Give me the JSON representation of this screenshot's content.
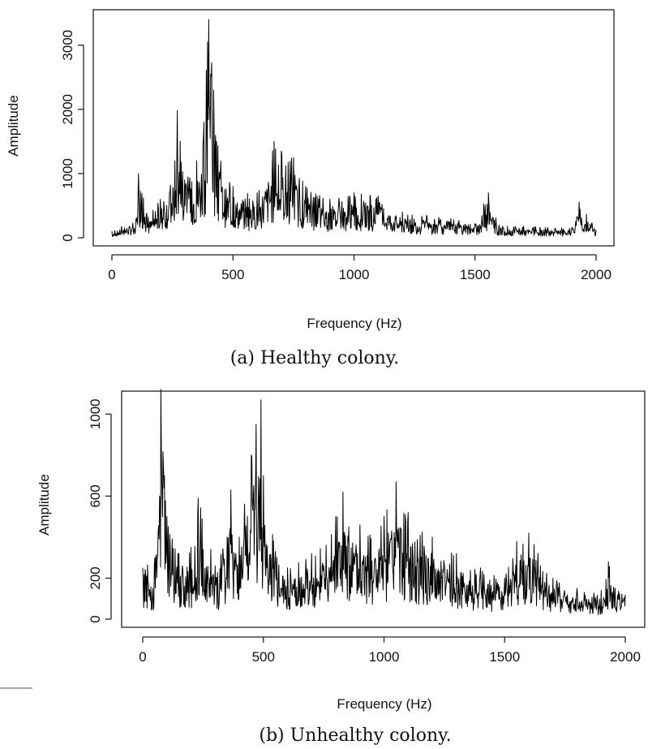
{
  "chart_data": [
    {
      "type": "line",
      "caption": "(a) Healthy colony.",
      "xlabel": "Frequency (Hz)",
      "ylabel": "Amplitude",
      "xlim": [
        0,
        2000
      ],
      "ylim": [
        0,
        3400
      ],
      "xticks": [
        "0",
        "500",
        "1000",
        "1500",
        "2000"
      ],
      "yticks": [
        "0",
        "1000",
        "2000",
        "3000"
      ],
      "grid": false,
      "series": [
        {
          "x": [
            0,
            100,
            110,
            150,
            200,
            260,
            270,
            300,
            350,
            380,
            395,
            400,
            420,
            450,
            500,
            600,
            670,
            700,
            750,
            800,
            900,
            1000,
            1100,
            1200,
            1300,
            1400,
            1500,
            1555,
            1600,
            1700,
            1800,
            1900,
            1930,
            2000
          ],
          "values": [
            100,
            300,
            1000,
            320,
            600,
            1200,
            1980,
            900,
            1200,
            1800,
            3050,
            3400,
            2300,
            1200,
            800,
            700,
            1500,
            1350,
            1250,
            800,
            600,
            700,
            650,
            400,
            350,
            300,
            220,
            700,
            200,
            180,
            160,
            150,
            560,
            120
          ]
        }
      ]
    },
    {
      "type": "line",
      "caption": "(b) Unhealthy colony.",
      "xlabel": "Frequency (Hz)",
      "ylabel": "Amplitude",
      "xlim": [
        0,
        2000
      ],
      "ylim": [
        0,
        1100
      ],
      "xticks": [
        "0",
        "500",
        "1000",
        "1500",
        "2000"
      ],
      "yticks": [
        "0",
        "200",
        "600",
        "1000"
      ],
      "grid": false,
      "series": [
        {
          "x": [
            0,
            50,
            75,
            90,
            100,
            150,
            200,
            230,
            300,
            350,
            365,
            400,
            450,
            470,
            490,
            500,
            550,
            600,
            700,
            800,
            830,
            900,
            1000,
            1050,
            1100,
            1200,
            1300,
            1400,
            1500,
            1550,
            1600,
            1700,
            1800,
            1900,
            1930,
            2000
          ],
          "values": [
            250,
            300,
            1120,
            700,
            500,
            320,
            350,
            590,
            260,
            400,
            630,
            400,
            800,
            950,
            1070,
            700,
            330,
            250,
            320,
            500,
            620,
            460,
            500,
            670,
            520,
            400,
            320,
            250,
            200,
            380,
            420,
            200,
            150,
            140,
            280,
            120
          ]
        }
      ]
    }
  ]
}
